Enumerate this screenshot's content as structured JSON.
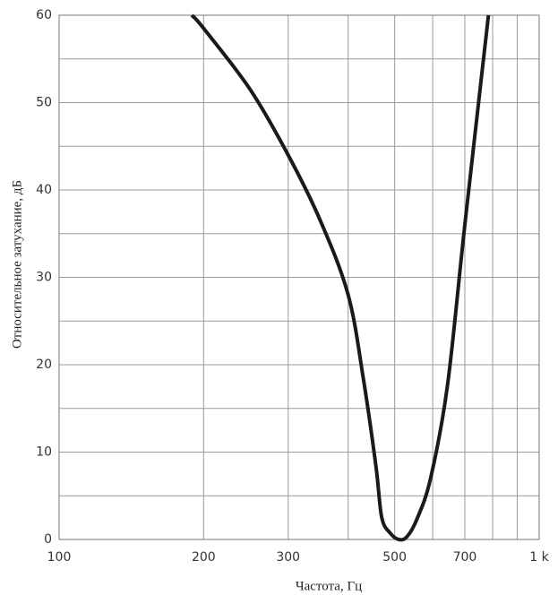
{
  "chart_data": {
    "type": "line",
    "x_label": "Частота,  Гц",
    "y_label": "Относительное  затухание, дБ",
    "x_scale": "log",
    "xlim": [
      100,
      1000
    ],
    "ylim": [
      0,
      60
    ],
    "xticks": [
      100,
      200,
      300,
      500,
      700,
      {
        "value": 1000,
        "label": "1 k"
      }
    ],
    "xgrid": [
      100,
      200,
      300,
      400,
      500,
      600,
      700,
      800,
      900,
      1000
    ],
    "yticks": [
      0,
      10,
      20,
      30,
      40,
      50,
      60
    ],
    "ygrid": [
      0,
      5,
      10,
      15,
      20,
      25,
      30,
      35,
      40,
      45,
      50,
      55,
      60
    ],
    "grid": true,
    "color": "#1a1a1a",
    "x": [
      189,
      200,
      250,
      300,
      350,
      400,
      430,
      457,
      470,
      490,
      510,
      530,
      556,
      594,
      644,
      700,
      784
    ],
    "values": [
      60,
      58.5,
      51.5,
      44,
      36.5,
      28,
      18.5,
      8.4,
      2.5,
      0.7,
      0,
      0.3,
      2.3,
      7,
      17.6,
      36,
      60
    ]
  }
}
